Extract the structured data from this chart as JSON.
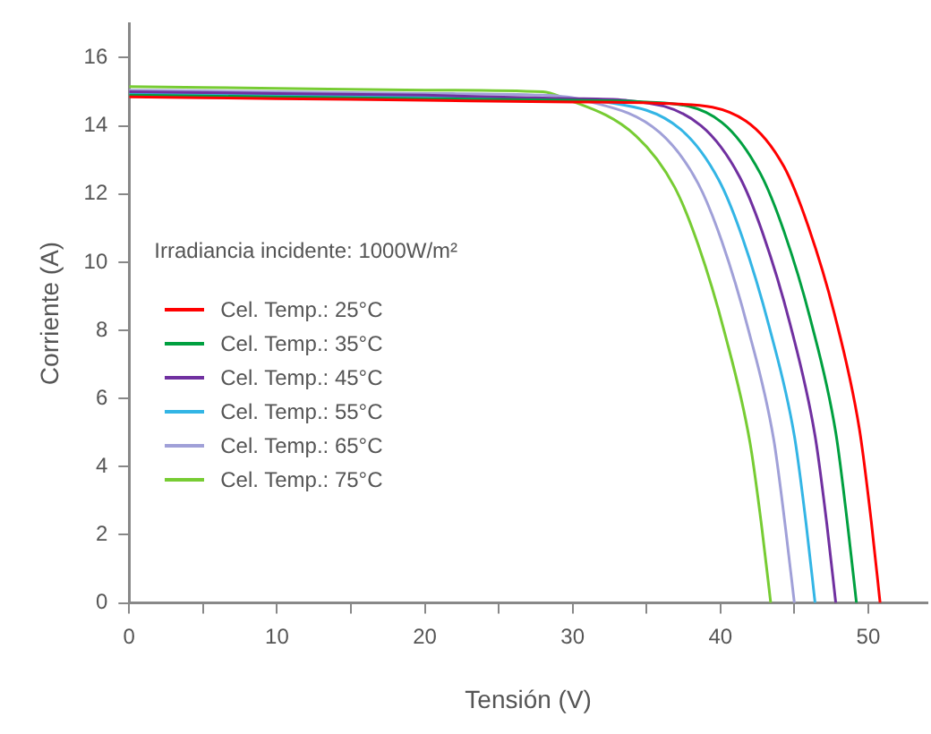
{
  "chart_data": {
    "type": "line",
    "xlabel": "Tensión (V)",
    "ylabel": "Corriente (A)",
    "annotations": [
      "Irradiancia incidente: 1000W/m²"
    ],
    "xlim": [
      0,
      54
    ],
    "ylim": [
      0,
      17
    ],
    "xticks": [
      0,
      {
        "value": 5,
        "label": null
      },
      10,
      {
        "value": 15,
        "label": null
      },
      20,
      {
        "value": 25,
        "label": null
      },
      30,
      {
        "value": 35,
        "label": null
      },
      40,
      {
        "value": 45,
        "label": null
      },
      50
    ],
    "yticks": [
      0,
      2,
      4,
      6,
      8,
      10,
      12,
      14,
      16
    ],
    "grid": false,
    "legend": "left",
    "marker": "none",
    "line_style": "solid",
    "series": [
      {
        "name": "Cel. Temp.: 25°C",
        "color": "#ff0000",
        "x": [
          0,
          10,
          20,
          30,
          36.6,
          41.7,
          44.3,
          45.9,
          47.7,
          49.4,
          50.2,
          50.8
        ],
        "values": [
          14.85,
          14.8,
          14.75,
          14.7,
          14.65,
          14.15,
          12.8,
          11.1,
          8.5,
          5.1,
          2.4,
          0
        ]
      },
      {
        "name": "Cel. Temp.: 35°C",
        "color": "#00a040",
        "x": [
          0,
          10,
          20,
          30,
          35,
          40.1,
          42.7,
          44.3,
          46.1,
          47.8,
          48.6,
          49.2
        ],
        "values": [
          14.9,
          14.85,
          14.8,
          14.75,
          14.7,
          14.1,
          12.6,
          10.9,
          8.3,
          5,
          2.3,
          0
        ]
      },
      {
        "name": "Cel. Temp.: 45°C",
        "color": "#7030a0",
        "x": [
          0,
          10,
          20,
          30,
          33.6,
          38.7,
          41.3,
          42.9,
          44.7,
          46.4,
          47.2,
          47.8
        ],
        "values": [
          15,
          14.95,
          14.9,
          14.8,
          14.75,
          14,
          12.5,
          10.8,
          8.2,
          4.9,
          2.3,
          0
        ]
      },
      {
        "name": "Cel. Temp.: 55°C",
        "color": "#33b5e5",
        "x": [
          0,
          10,
          20,
          28,
          32.2,
          37.3,
          39.9,
          41.5,
          43.3,
          45,
          45.8,
          46.4
        ],
        "values": [
          14.95,
          14.9,
          14.85,
          14.8,
          14.7,
          13.9,
          12.4,
          10.7,
          8.1,
          4.9,
          2.3,
          0
        ]
      },
      {
        "name": "Cel. Temp.: 65°C",
        "color": "#a0a0d8",
        "x": [
          0,
          10,
          20,
          28,
          30.8,
          35.9,
          38.5,
          40.1,
          41.9,
          43.6,
          44.4,
          45
        ],
        "values": [
          15.05,
          15,
          14.95,
          14.9,
          14.75,
          13.8,
          12.3,
          10.6,
          8,
          4.8,
          2.2,
          0
        ]
      },
      {
        "name": "Cel. Temp.: 75°C",
        "color": "#77cc33",
        "x": [
          0,
          10,
          20,
          28,
          29.2,
          34.3,
          36.9,
          38.5,
          40.3,
          42,
          42.8,
          43.4
        ],
        "values": [
          15.15,
          15.1,
          15.05,
          15,
          14.85,
          13.7,
          12.2,
          10.5,
          7.9,
          4.7,
          2.2,
          0
        ]
      }
    ]
  }
}
